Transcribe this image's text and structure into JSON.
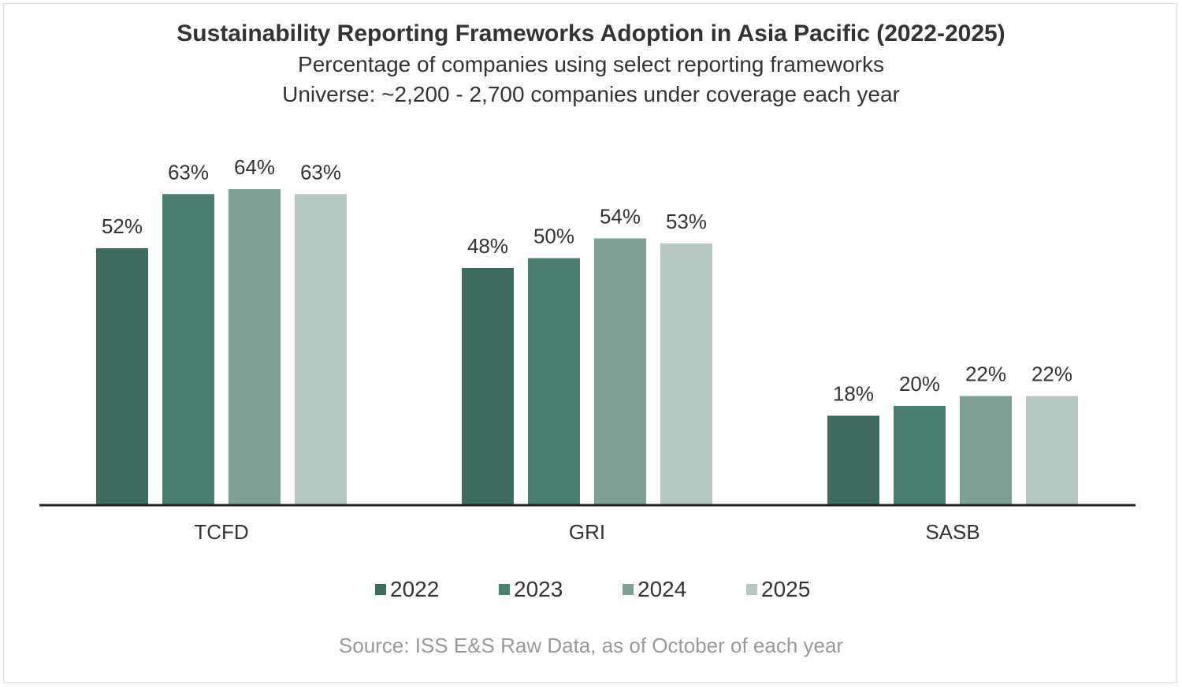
{
  "chart_data": {
    "type": "bar",
    "title": "Sustainability Reporting Frameworks Adoption in Asia Pacific (2022-2025)",
    "subtitle": "Percentage of companies using select reporting frameworks",
    "subtitle2": "Universe: ~2,200 - 2,700 companies under coverage each year",
    "categories": [
      "TCFD",
      "GRI",
      "SASB"
    ],
    "series": [
      {
        "name": "2022",
        "values": [
          52,
          48,
          18
        ],
        "color": "#3d6b5f"
      },
      {
        "name": "2023",
        "values": [
          63,
          50,
          20
        ],
        "color": "#4c7f72"
      },
      {
        "name": "2024",
        "values": [
          64,
          54,
          22
        ],
        "color": "#7fa195"
      },
      {
        "name": "2025",
        "values": [
          63,
          53,
          22
        ],
        "color": "#b7c8c2"
      }
    ],
    "value_suffix": "%",
    "ylim": [
      0,
      70
    ],
    "grid": false,
    "legend_position": "bottom",
    "source": "Source: ISS E&S Raw Data, as of October of each year"
  }
}
